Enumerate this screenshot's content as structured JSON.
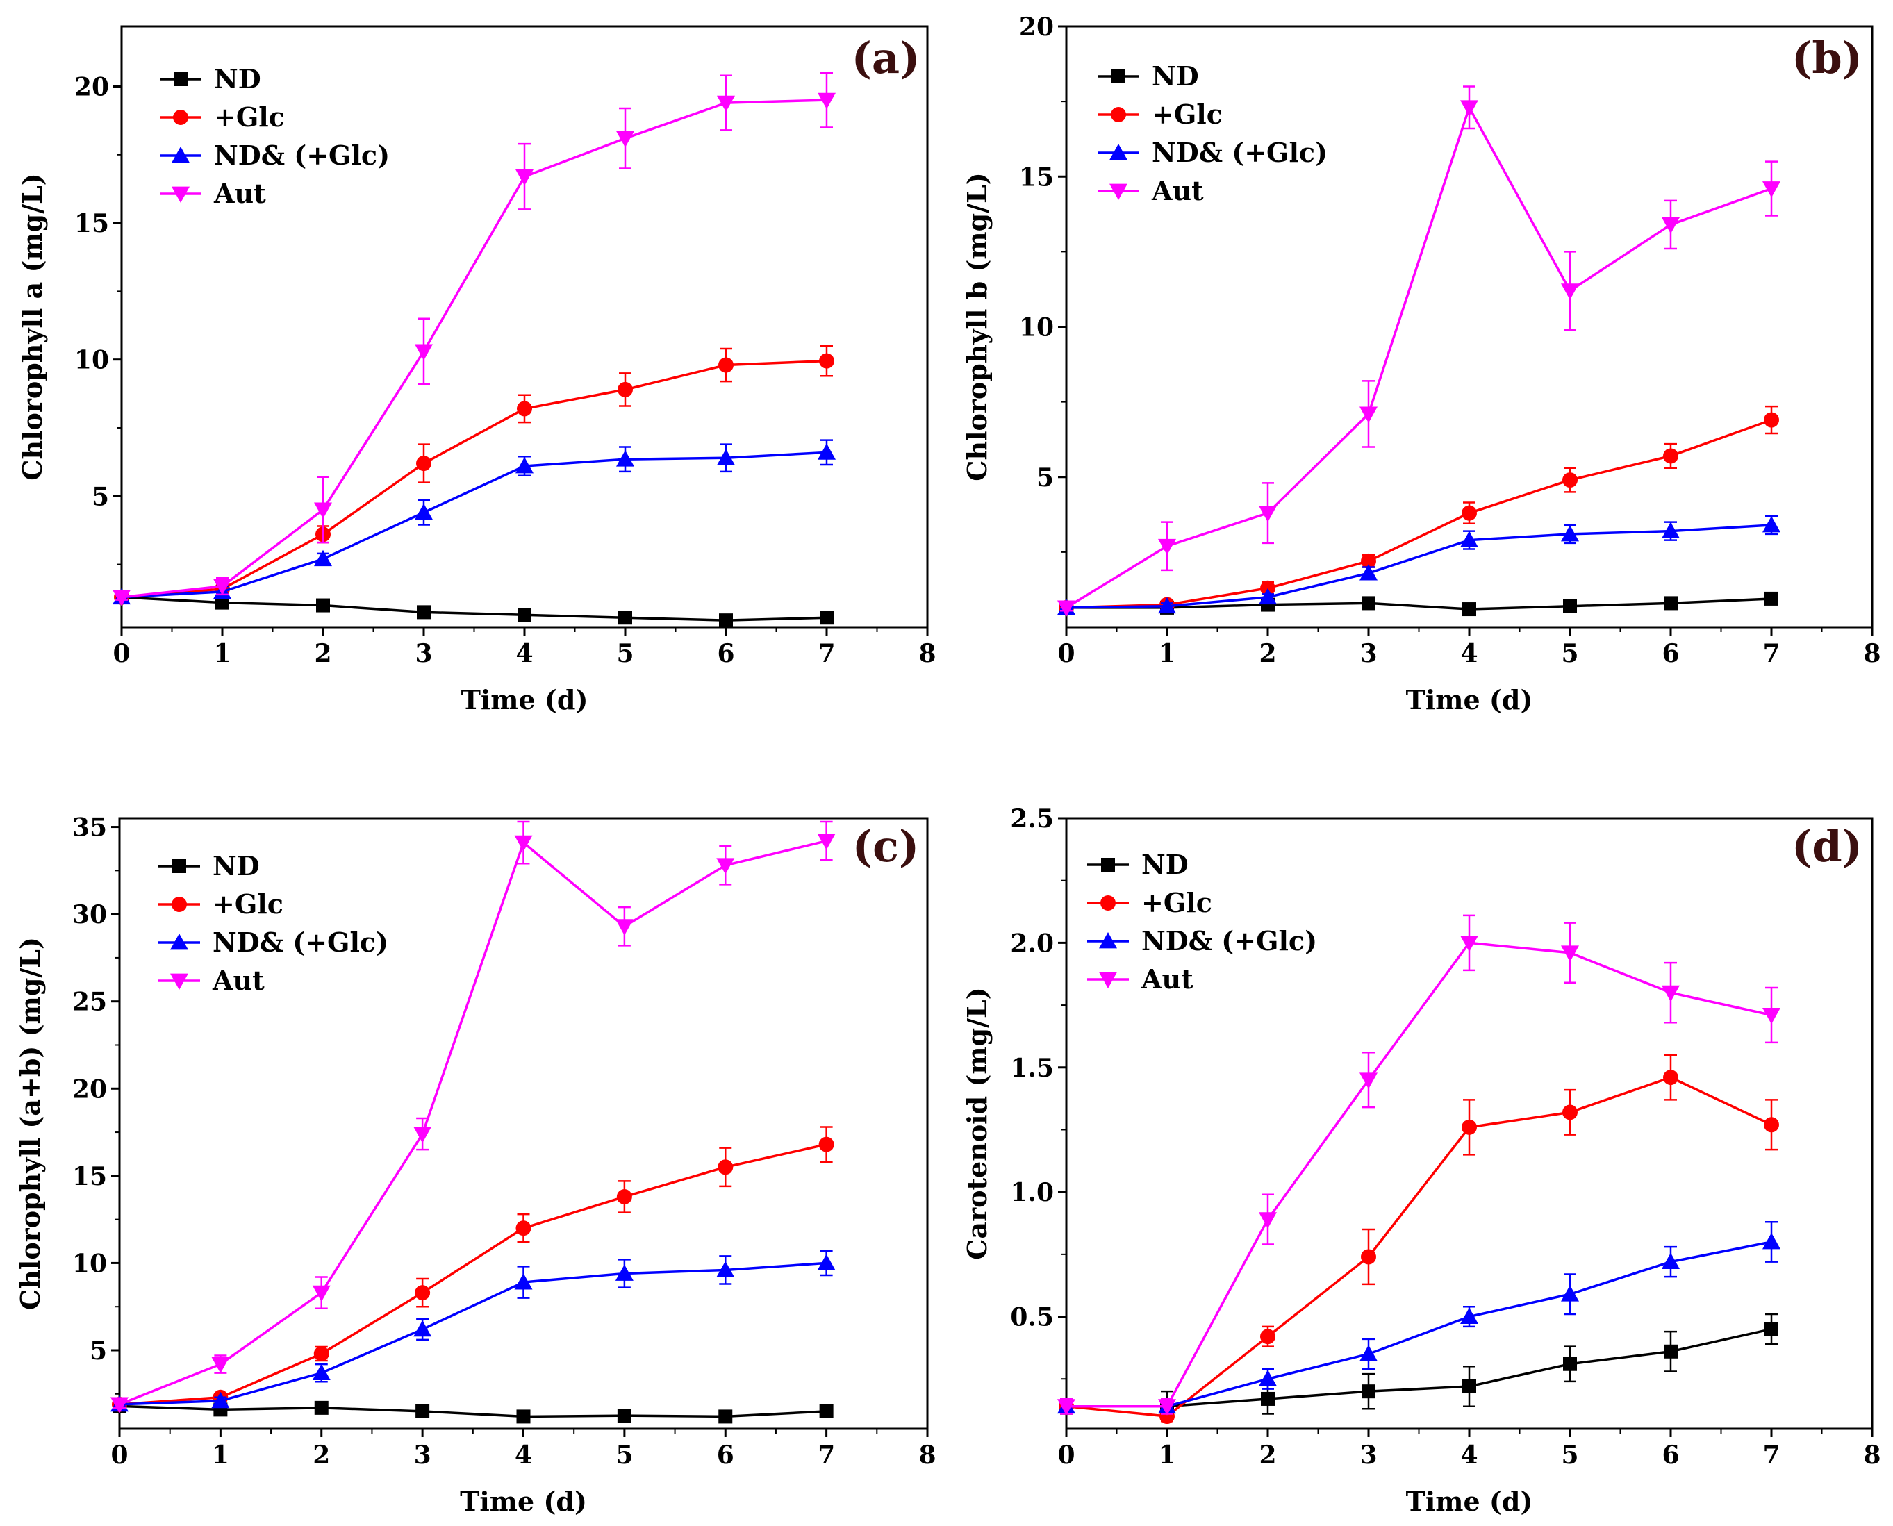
{
  "chart_data": [
    {
      "type": "line",
      "panel_label": "(a)",
      "xlabel": "Time (d)",
      "ylabel": "Chlorophyll a (mg/L)",
      "xlim": [
        0,
        8
      ],
      "ylim": [
        0.2,
        22.2
      ],
      "x_ticks": [
        0,
        1,
        2,
        3,
        4,
        5,
        6,
        7,
        8
      ],
      "x_tick_labels": [
        "0",
        "1",
        "2",
        "3",
        "4",
        "5",
        "6",
        "7",
        "8"
      ],
      "y_ticks": [
        5,
        10,
        15,
        20
      ],
      "y_tick_labels": [
        "5",
        "10",
        "15",
        "20"
      ],
      "legend_position": "top-left",
      "x": [
        0,
        1,
        2,
        3,
        4,
        5,
        6,
        7
      ],
      "series": [
        {
          "name": "ND",
          "color": "#000000",
          "marker": "square",
          "values": [
            1.3,
            1.1,
            1.0,
            0.75,
            0.65,
            0.55,
            0.45,
            0.55
          ],
          "errors": [
            0,
            0,
            0,
            0,
            0,
            0,
            0,
            0
          ]
        },
        {
          "name": "+Glc",
          "color": "#ff0000",
          "marker": "circle",
          "values": [
            1.3,
            1.6,
            3.6,
            6.2,
            8.2,
            8.9,
            9.8,
            9.95
          ],
          "errors": [
            0.1,
            0.2,
            0.3,
            0.7,
            0.5,
            0.6,
            0.6,
            0.55
          ]
        },
        {
          "name": "ND& (+Glc)",
          "color": "#0000ff",
          "marker": "triangle-up",
          "values": [
            1.3,
            1.5,
            2.7,
            4.4,
            6.1,
            6.35,
            6.4,
            6.6
          ],
          "errors": [
            0.1,
            0.2,
            0.2,
            0.45,
            0.35,
            0.45,
            0.5,
            0.45
          ]
        },
        {
          "name": "Aut",
          "color": "#ff00ff",
          "marker": "triangle-down",
          "values": [
            1.3,
            1.7,
            4.5,
            10.3,
            16.7,
            18.1,
            19.4,
            19.5
          ],
          "errors": [
            0.1,
            0.3,
            1.2,
            1.2,
            1.2,
            1.1,
            1.0,
            1.0
          ]
        }
      ]
    },
    {
      "type": "line",
      "panel_label": "(b)",
      "xlabel": "Time (d)",
      "ylabel": "Chlorophyll b (mg/L)",
      "xlim": [
        0,
        8
      ],
      "ylim": [
        0,
        20
      ],
      "x_ticks": [
        0,
        1,
        2,
        3,
        4,
        5,
        6,
        7,
        8
      ],
      "x_tick_labels": [
        "0",
        "1",
        "2",
        "3",
        "4",
        "5",
        "6",
        "7",
        "8"
      ],
      "y_ticks": [
        5,
        10,
        15,
        20
      ],
      "y_tick_labels": [
        "5",
        "10",
        "15",
        "20"
      ],
      "legend_position": "top-left",
      "x": [
        0,
        1,
        2,
        3,
        4,
        5,
        6,
        7
      ],
      "series": [
        {
          "name": "ND",
          "color": "#000000",
          "marker": "square",
          "values": [
            0.65,
            0.65,
            0.75,
            0.8,
            0.6,
            0.7,
            0.8,
            0.95
          ],
          "errors": [
            0,
            0,
            0,
            0,
            0,
            0,
            0,
            0
          ]
        },
        {
          "name": "+Glc",
          "color": "#ff0000",
          "marker": "circle",
          "values": [
            0.65,
            0.75,
            1.3,
            2.2,
            3.8,
            4.9,
            5.7,
            6.9
          ],
          "errors": [
            0.05,
            0.1,
            0.2,
            0.2,
            0.35,
            0.4,
            0.4,
            0.45
          ]
        },
        {
          "name": "ND& (+Glc)",
          "color": "#0000ff",
          "marker": "triangle-up",
          "values": [
            0.65,
            0.7,
            1.0,
            1.8,
            2.9,
            3.1,
            3.2,
            3.4
          ],
          "errors": [
            0.05,
            0.1,
            0.1,
            0.2,
            0.3,
            0.3,
            0.3,
            0.3
          ]
        },
        {
          "name": "Aut",
          "color": "#ff00ff",
          "marker": "triangle-down",
          "values": [
            0.65,
            2.7,
            3.8,
            7.1,
            17.3,
            11.2,
            13.4,
            14.6
          ],
          "errors": [
            0.1,
            0.8,
            1.0,
            1.1,
            0.7,
            1.3,
            0.8,
            0.9
          ]
        }
      ]
    },
    {
      "type": "line",
      "panel_label": "(c)",
      "xlabel": "Time (d)",
      "ylabel": "Chlorophyll (a+b) (mg/L)",
      "xlim": [
        0,
        8
      ],
      "ylim": [
        0.5,
        35.5
      ],
      "x_ticks": [
        0,
        1,
        2,
        3,
        4,
        5,
        6,
        7,
        8
      ],
      "x_tick_labels": [
        "0",
        "1",
        "2",
        "3",
        "4",
        "5",
        "6",
        "7",
        "8"
      ],
      "y_ticks": [
        5,
        10,
        15,
        20,
        25,
        30,
        35
      ],
      "y_tick_labels": [
        "5",
        "10",
        "15",
        "20",
        "25",
        "30",
        "35"
      ],
      "legend_position": "top-left",
      "x": [
        0,
        1,
        2,
        3,
        4,
        5,
        6,
        7
      ],
      "series": [
        {
          "name": "ND",
          "color": "#000000",
          "marker": "square",
          "values": [
            1.8,
            1.6,
            1.7,
            1.5,
            1.2,
            1.25,
            1.2,
            1.5
          ],
          "errors": [
            0,
            0,
            0,
            0,
            0,
            0,
            0,
            0
          ]
        },
        {
          "name": "+Glc",
          "color": "#ff0000",
          "marker": "circle",
          "values": [
            1.9,
            2.3,
            4.8,
            8.3,
            12.0,
            13.8,
            15.5,
            16.8
          ],
          "errors": [
            0.3,
            0.2,
            0.4,
            0.8,
            0.8,
            0.9,
            1.1,
            1.0
          ]
        },
        {
          "name": "ND& (+Glc)",
          "color": "#0000ff",
          "marker": "triangle-up",
          "values": [
            1.9,
            2.1,
            3.7,
            6.2,
            8.9,
            9.4,
            9.6,
            10.0
          ],
          "errors": [
            0.2,
            0.2,
            0.5,
            0.6,
            0.9,
            0.8,
            0.8,
            0.7
          ]
        },
        {
          "name": "Aut",
          "color": "#ff00ff",
          "marker": "triangle-down",
          "values": [
            1.9,
            4.2,
            8.3,
            17.4,
            34.1,
            29.3,
            32.8,
            34.2
          ],
          "errors": [
            0.2,
            0.5,
            0.9,
            0.9,
            1.2,
            1.1,
            1.1,
            1.1
          ]
        }
      ]
    },
    {
      "type": "line",
      "panel_label": "(d)",
      "xlabel": "Time (d)",
      "ylabel": "Carotenoid (mg/L)",
      "xlim": [
        0,
        8
      ],
      "ylim": [
        0.05,
        2.5
      ],
      "x_ticks": [
        0,
        1,
        2,
        3,
        4,
        5,
        6,
        7,
        8
      ],
      "x_tick_labels": [
        "0",
        "1",
        "2",
        "3",
        "4",
        "5",
        "6",
        "7",
        "8"
      ],
      "y_ticks": [
        0.5,
        1.0,
        1.5,
        2.0,
        2.5
      ],
      "y_tick_labels": [
        "0.5",
        "1.0",
        "1.5",
        "2.0",
        "2.5"
      ],
      "legend_position": "top-left",
      "x": [
        0,
        1,
        2,
        3,
        4,
        5,
        6,
        7
      ],
      "series": [
        {
          "name": "ND",
          "color": "#000000",
          "marker": "square",
          "values": [
            0.14,
            0.14,
            0.17,
            0.2,
            0.22,
            0.31,
            0.36,
            0.45
          ],
          "errors": [
            0.03,
            0.06,
            0.06,
            0.07,
            0.08,
            0.07,
            0.08,
            0.06
          ]
        },
        {
          "name": "+Glc",
          "color": "#ff0000",
          "marker": "circle",
          "values": [
            0.14,
            0.1,
            0.42,
            0.74,
            1.26,
            1.32,
            1.46,
            1.27
          ],
          "errors": [
            0.02,
            0.02,
            0.04,
            0.11,
            0.11,
            0.09,
            0.09,
            0.1
          ]
        },
        {
          "name": "ND& (+Glc)",
          "color": "#0000ff",
          "marker": "triangle-up",
          "values": [
            0.14,
            0.14,
            0.25,
            0.35,
            0.5,
            0.59,
            0.72,
            0.8
          ],
          "errors": [
            0.02,
            0.02,
            0.04,
            0.06,
            0.04,
            0.08,
            0.06,
            0.08
          ]
        },
        {
          "name": "Aut",
          "color": "#ff00ff",
          "marker": "triangle-down",
          "values": [
            0.14,
            0.14,
            0.89,
            1.45,
            2.0,
            1.96,
            1.8,
            1.71
          ],
          "errors": [
            0.03,
            0.03,
            0.1,
            0.11,
            0.11,
            0.12,
            0.12,
            0.11
          ]
        }
      ]
    }
  ]
}
